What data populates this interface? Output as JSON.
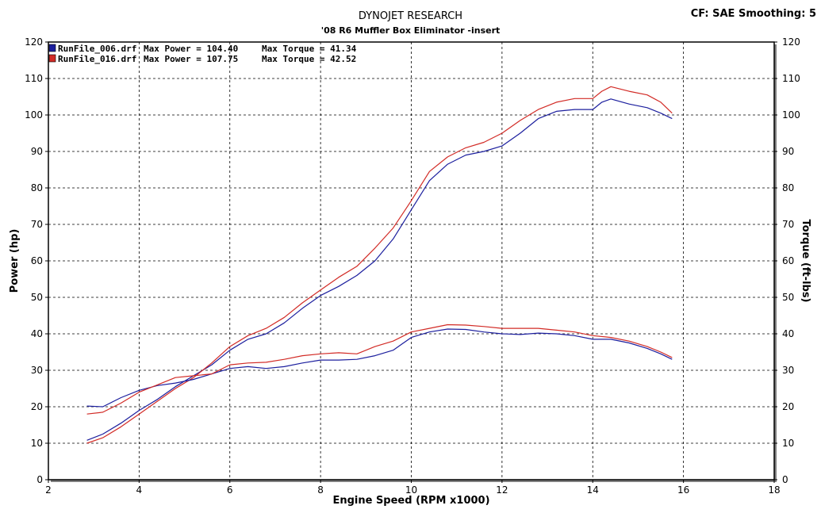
{
  "header": {
    "title": "DYNOJET RESEARCH",
    "subtitle": "'08 R6 Muffler Box Eliminator -insert",
    "cf_smoothing": "CF: SAE  Smoothing: 5"
  },
  "colors": {
    "run_006": "#1c1f9e",
    "run_016": "#d22b26",
    "grid": "#000000",
    "frame_shadow": "#808080"
  },
  "chart_data": {
    "type": "line",
    "xlabel": "Engine Speed (RPM x1000)",
    "ylabel": "Power (hp)",
    "y2label": "Torque (ft-lbs)",
    "xlim": [
      2,
      18
    ],
    "ylim": [
      0,
      120
    ],
    "y2lim": [
      0,
      120
    ],
    "xticks": [
      2,
      4,
      6,
      8,
      10,
      12,
      14,
      16,
      18
    ],
    "yticks": [
      0,
      10,
      20,
      30,
      40,
      50,
      60,
      70,
      80,
      90,
      100,
      110,
      120
    ],
    "grid": true,
    "legend_position": "top-left",
    "legend": [
      {
        "file": "RunFile_006.drf",
        "power_label": "Max Power = 104.40",
        "torque_label": "Max Torque = 41.34",
        "color": "#1c1f9e"
      },
      {
        "file": "RunFile_016.drf",
        "power_label": "Max Power = 107.75",
        "torque_label": "Max Torque = 42.52",
        "color": "#d22b26"
      }
    ],
    "series": [
      {
        "name": "RunFile_006.drf",
        "measure": "Power",
        "color": "#1c1f9e",
        "points": [
          [
            2.85,
            10.8
          ],
          [
            3.2,
            12.5
          ],
          [
            3.6,
            15.5
          ],
          [
            4.0,
            19.0
          ],
          [
            4.4,
            22.0
          ],
          [
            4.8,
            25.5
          ],
          [
            5.2,
            28.5
          ],
          [
            5.6,
            31.5
          ],
          [
            6.0,
            35.5
          ],
          [
            6.4,
            38.5
          ],
          [
            6.8,
            40.0
          ],
          [
            7.2,
            43.0
          ],
          [
            7.6,
            47.0
          ],
          [
            8.0,
            50.5
          ],
          [
            8.4,
            53.0
          ],
          [
            8.8,
            56.0
          ],
          [
            9.2,
            60.0
          ],
          [
            9.6,
            66.0
          ],
          [
            10.0,
            74.0
          ],
          [
            10.4,
            82.0
          ],
          [
            10.8,
            86.5
          ],
          [
            11.2,
            89.0
          ],
          [
            11.6,
            90.0
          ],
          [
            12.0,
            91.5
          ],
          [
            12.4,
            95.0
          ],
          [
            12.8,
            99.0
          ],
          [
            13.2,
            101.0
          ],
          [
            13.6,
            101.5
          ],
          [
            14.0,
            101.5
          ],
          [
            14.2,
            103.5
          ],
          [
            14.4,
            104.4
          ],
          [
            14.8,
            103.0
          ],
          [
            15.2,
            102.0
          ],
          [
            15.5,
            100.5
          ],
          [
            15.75,
            99.0
          ]
        ]
      },
      {
        "name": "RunFile_016.drf",
        "measure": "Power",
        "color": "#d22b26",
        "points": [
          [
            2.85,
            10.0
          ],
          [
            3.2,
            11.5
          ],
          [
            3.6,
            14.5
          ],
          [
            4.0,
            18.0
          ],
          [
            4.4,
            21.5
          ],
          [
            4.8,
            25.0
          ],
          [
            5.2,
            28.0
          ],
          [
            5.6,
            32.0
          ],
          [
            6.0,
            36.5
          ],
          [
            6.4,
            39.5
          ],
          [
            6.8,
            41.5
          ],
          [
            7.2,
            44.5
          ],
          [
            7.6,
            48.5
          ],
          [
            8.0,
            52.0
          ],
          [
            8.4,
            55.5
          ],
          [
            8.8,
            58.5
          ],
          [
            9.2,
            63.5
          ],
          [
            9.6,
            69.0
          ],
          [
            10.0,
            76.5
          ],
          [
            10.4,
            84.5
          ],
          [
            10.8,
            88.5
          ],
          [
            11.2,
            91.0
          ],
          [
            11.6,
            92.5
          ],
          [
            12.0,
            95.0
          ],
          [
            12.4,
            98.5
          ],
          [
            12.8,
            101.5
          ],
          [
            13.2,
            103.5
          ],
          [
            13.6,
            104.5
          ],
          [
            14.0,
            104.5
          ],
          [
            14.2,
            106.5
          ],
          [
            14.4,
            107.75
          ],
          [
            14.8,
            106.5
          ],
          [
            15.2,
            105.5
          ],
          [
            15.5,
            103.5
          ],
          [
            15.75,
            100.5
          ]
        ]
      },
      {
        "name": "RunFile_006.drf",
        "measure": "Torque",
        "color": "#1c1f9e",
        "points": [
          [
            2.85,
            20.2
          ],
          [
            3.2,
            20.0
          ],
          [
            3.6,
            22.5
          ],
          [
            4.0,
            24.5
          ],
          [
            4.4,
            25.8
          ],
          [
            4.8,
            26.5
          ],
          [
            5.2,
            27.5
          ],
          [
            5.6,
            29.0
          ],
          [
            6.0,
            30.5
          ],
          [
            6.4,
            31.0
          ],
          [
            6.8,
            30.5
          ],
          [
            7.2,
            31.0
          ],
          [
            7.6,
            32.0
          ],
          [
            8.0,
            32.8
          ],
          [
            8.4,
            32.8
          ],
          [
            8.8,
            33.0
          ],
          [
            9.2,
            34.0
          ],
          [
            9.6,
            35.5
          ],
          [
            10.0,
            39.0
          ],
          [
            10.4,
            40.5
          ],
          [
            10.8,
            41.3
          ],
          [
            11.2,
            41.2
          ],
          [
            11.6,
            40.5
          ],
          [
            12.0,
            40.0
          ],
          [
            12.4,
            39.8
          ],
          [
            12.8,
            40.2
          ],
          [
            13.2,
            40.0
          ],
          [
            13.6,
            39.5
          ],
          [
            14.0,
            38.5
          ],
          [
            14.4,
            38.5
          ],
          [
            14.8,
            37.5
          ],
          [
            15.2,
            36.0
          ],
          [
            15.5,
            34.5
          ],
          [
            15.75,
            33.0
          ]
        ]
      },
      {
        "name": "RunFile_016.drf",
        "measure": "Torque",
        "color": "#d22b26",
        "points": [
          [
            2.85,
            18.0
          ],
          [
            3.2,
            18.5
          ],
          [
            3.6,
            21.0
          ],
          [
            4.0,
            24.0
          ],
          [
            4.4,
            26.0
          ],
          [
            4.8,
            28.0
          ],
          [
            5.2,
            28.5
          ],
          [
            5.6,
            29.0
          ],
          [
            6.0,
            31.5
          ],
          [
            6.4,
            32.0
          ],
          [
            6.8,
            32.2
          ],
          [
            7.2,
            33.0
          ],
          [
            7.6,
            34.0
          ],
          [
            8.0,
            34.5
          ],
          [
            8.4,
            34.8
          ],
          [
            8.8,
            34.5
          ],
          [
            9.2,
            36.5
          ],
          [
            9.6,
            38.0
          ],
          [
            10.0,
            40.5
          ],
          [
            10.4,
            41.5
          ],
          [
            10.8,
            42.5
          ],
          [
            11.2,
            42.4
          ],
          [
            11.6,
            42.0
          ],
          [
            12.0,
            41.5
          ],
          [
            12.4,
            41.5
          ],
          [
            12.8,
            41.5
          ],
          [
            13.2,
            41.0
          ],
          [
            13.6,
            40.5
          ],
          [
            14.0,
            39.5
          ],
          [
            14.4,
            39.0
          ],
          [
            14.8,
            38.0
          ],
          [
            15.2,
            36.5
          ],
          [
            15.5,
            35.0
          ],
          [
            15.75,
            33.5
          ]
        ]
      }
    ]
  }
}
